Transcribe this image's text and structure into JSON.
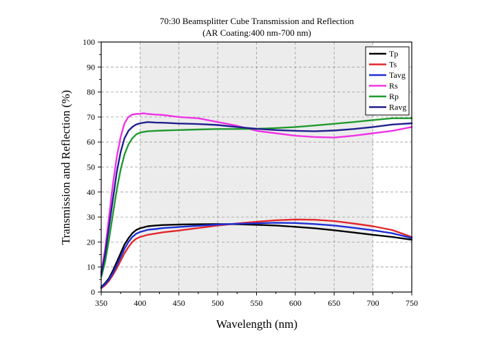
{
  "chart_data": {
    "type": "line",
    "title": "70:30 Beamsplitter Cube Transmission and Reflection",
    "subtitle": "(AR Coating:400 nm-700 nm)",
    "xlabel": "Wavelength (nm)",
    "ylabel": "Transmission and Reflection (%)",
    "xlim": [
      350,
      750
    ],
    "ylim": [
      0,
      100
    ],
    "xticks": [
      350,
      400,
      450,
      500,
      550,
      600,
      650,
      700,
      750
    ],
    "yticks": [
      0,
      10,
      20,
      30,
      40,
      50,
      60,
      70,
      80,
      90,
      100
    ],
    "grid": "dashed",
    "shaded_band": [
      400,
      700
    ],
    "legend_position": "top-right",
    "series": [
      {
        "name": "Tp",
        "color": "#000000",
        "x": [
          350,
          355,
          360,
          365,
          370,
          375,
          380,
          385,
          390,
          395,
          400,
          410,
          420,
          430,
          450,
          475,
          500,
          525,
          550,
          575,
          600,
          625,
          650,
          675,
          700,
          725,
          750
        ],
        "y": [
          2,
          3.5,
          5.5,
          8.5,
          12,
          15.5,
          19,
          21.5,
          23.5,
          24.8,
          25.5,
          26.3,
          26.6,
          26.8,
          27,
          27.1,
          27.2,
          27.1,
          26.9,
          26.6,
          26.1,
          25.5,
          24.7,
          23.8,
          22.9,
          22,
          20.9
        ]
      },
      {
        "name": "Ts",
        "color": "#e3262b",
        "x": [
          350,
          355,
          360,
          365,
          370,
          375,
          380,
          385,
          390,
          395,
          400,
          410,
          420,
          430,
          450,
          475,
          500,
          525,
          550,
          575,
          600,
          625,
          650,
          675,
          700,
          725,
          750
        ],
        "y": [
          1.5,
          2.7,
          4.5,
          6.8,
          9.5,
          12.5,
          15.5,
          18,
          20,
          21.3,
          22,
          22.9,
          23.4,
          23.9,
          24.6,
          25.6,
          26.6,
          27.4,
          28.1,
          28.7,
          29,
          28.9,
          28.4,
          27.4,
          26.3,
          24.8,
          22
        ]
      },
      {
        "name": "Tavg",
        "color": "#1c2fd6",
        "x": [
          350,
          355,
          360,
          365,
          370,
          375,
          380,
          385,
          390,
          395,
          400,
          410,
          420,
          430,
          450,
          475,
          500,
          525,
          550,
          575,
          600,
          625,
          650,
          675,
          700,
          725,
          750
        ],
        "y": [
          1.8,
          3.1,
          5,
          7.6,
          10.8,
          14,
          17.3,
          20,
          22,
          23.3,
          24,
          24.9,
          25.2,
          25.6,
          26,
          26.5,
          27,
          27.3,
          27.5,
          27.7,
          27.6,
          27.2,
          26.6,
          25.7,
          24.7,
          23.5,
          21.6
        ]
      },
      {
        "name": "Rs",
        "color": "#f032e6",
        "x": [
          350,
          355,
          360,
          365,
          370,
          375,
          380,
          385,
          390,
          395,
          400,
          405,
          410,
          420,
          430,
          450,
          475,
          500,
          525,
          550,
          575,
          600,
          625,
          650,
          675,
          700,
          725,
          750
        ],
        "y": [
          8,
          17,
          30,
          43,
          54,
          62,
          67.5,
          70,
          71,
          71.2,
          71.3,
          71.5,
          71.2,
          71,
          70.8,
          70,
          69.5,
          68,
          66.5,
          64.5,
          63.5,
          62.5,
          62,
          61.8,
          62.5,
          63.5,
          64.5,
          66
        ]
      },
      {
        "name": "Rp",
        "color": "#1e9a2e",
        "x": [
          350,
          355,
          360,
          365,
          370,
          375,
          380,
          385,
          390,
          395,
          400,
          410,
          420,
          430,
          450,
          475,
          500,
          525,
          550,
          575,
          600,
          625,
          650,
          675,
          700,
          725,
          750
        ],
        "y": [
          6,
          12,
          21,
          31,
          41,
          49,
          55,
          59,
          61.5,
          63,
          63.8,
          64.3,
          64.5,
          64.6,
          64.8,
          65,
          65.2,
          65.2,
          65.3,
          65.6,
          66,
          66.6,
          67.3,
          68,
          68.8,
          69.5,
          69.5
        ]
      },
      {
        "name": "Ravg",
        "color": "#1e1f8f",
        "x": [
          350,
          355,
          360,
          365,
          370,
          375,
          380,
          385,
          390,
          395,
          400,
          410,
          420,
          430,
          450,
          475,
          500,
          525,
          550,
          575,
          600,
          625,
          650,
          675,
          700,
          725,
          750
        ],
        "y": [
          7,
          15,
          26,
          37,
          48,
          56,
          61.5,
          64.5,
          66,
          67,
          67.5,
          68,
          67.8,
          67.7,
          67.4,
          67.2,
          66.8,
          66,
          65.3,
          64.8,
          64.5,
          64.3,
          64.6,
          65.2,
          66,
          67,
          67.5
        ]
      }
    ]
  }
}
